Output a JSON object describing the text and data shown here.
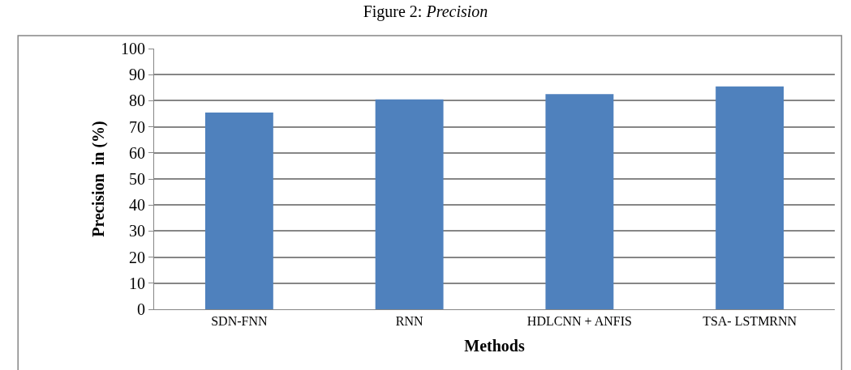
{
  "chart_data": {
    "type": "bar",
    "title": "Figure 2: Precision",
    "categories": [
      "SDN-FNN",
      "RNN",
      "HDLCNN + ANFIS",
      "TSA- LSTMRNN"
    ],
    "values": [
      75.5,
      80.5,
      82.5,
      85.5
    ],
    "color": "#4f81bd",
    "xlabel": "Methods",
    "ylabel": "Precision  in (%)",
    "ylim": [
      0,
      100
    ],
    "yticks": [
      0,
      10,
      20,
      30,
      40,
      50,
      60,
      70,
      80,
      90,
      100
    ],
    "grid": "y",
    "legend": false
  }
}
